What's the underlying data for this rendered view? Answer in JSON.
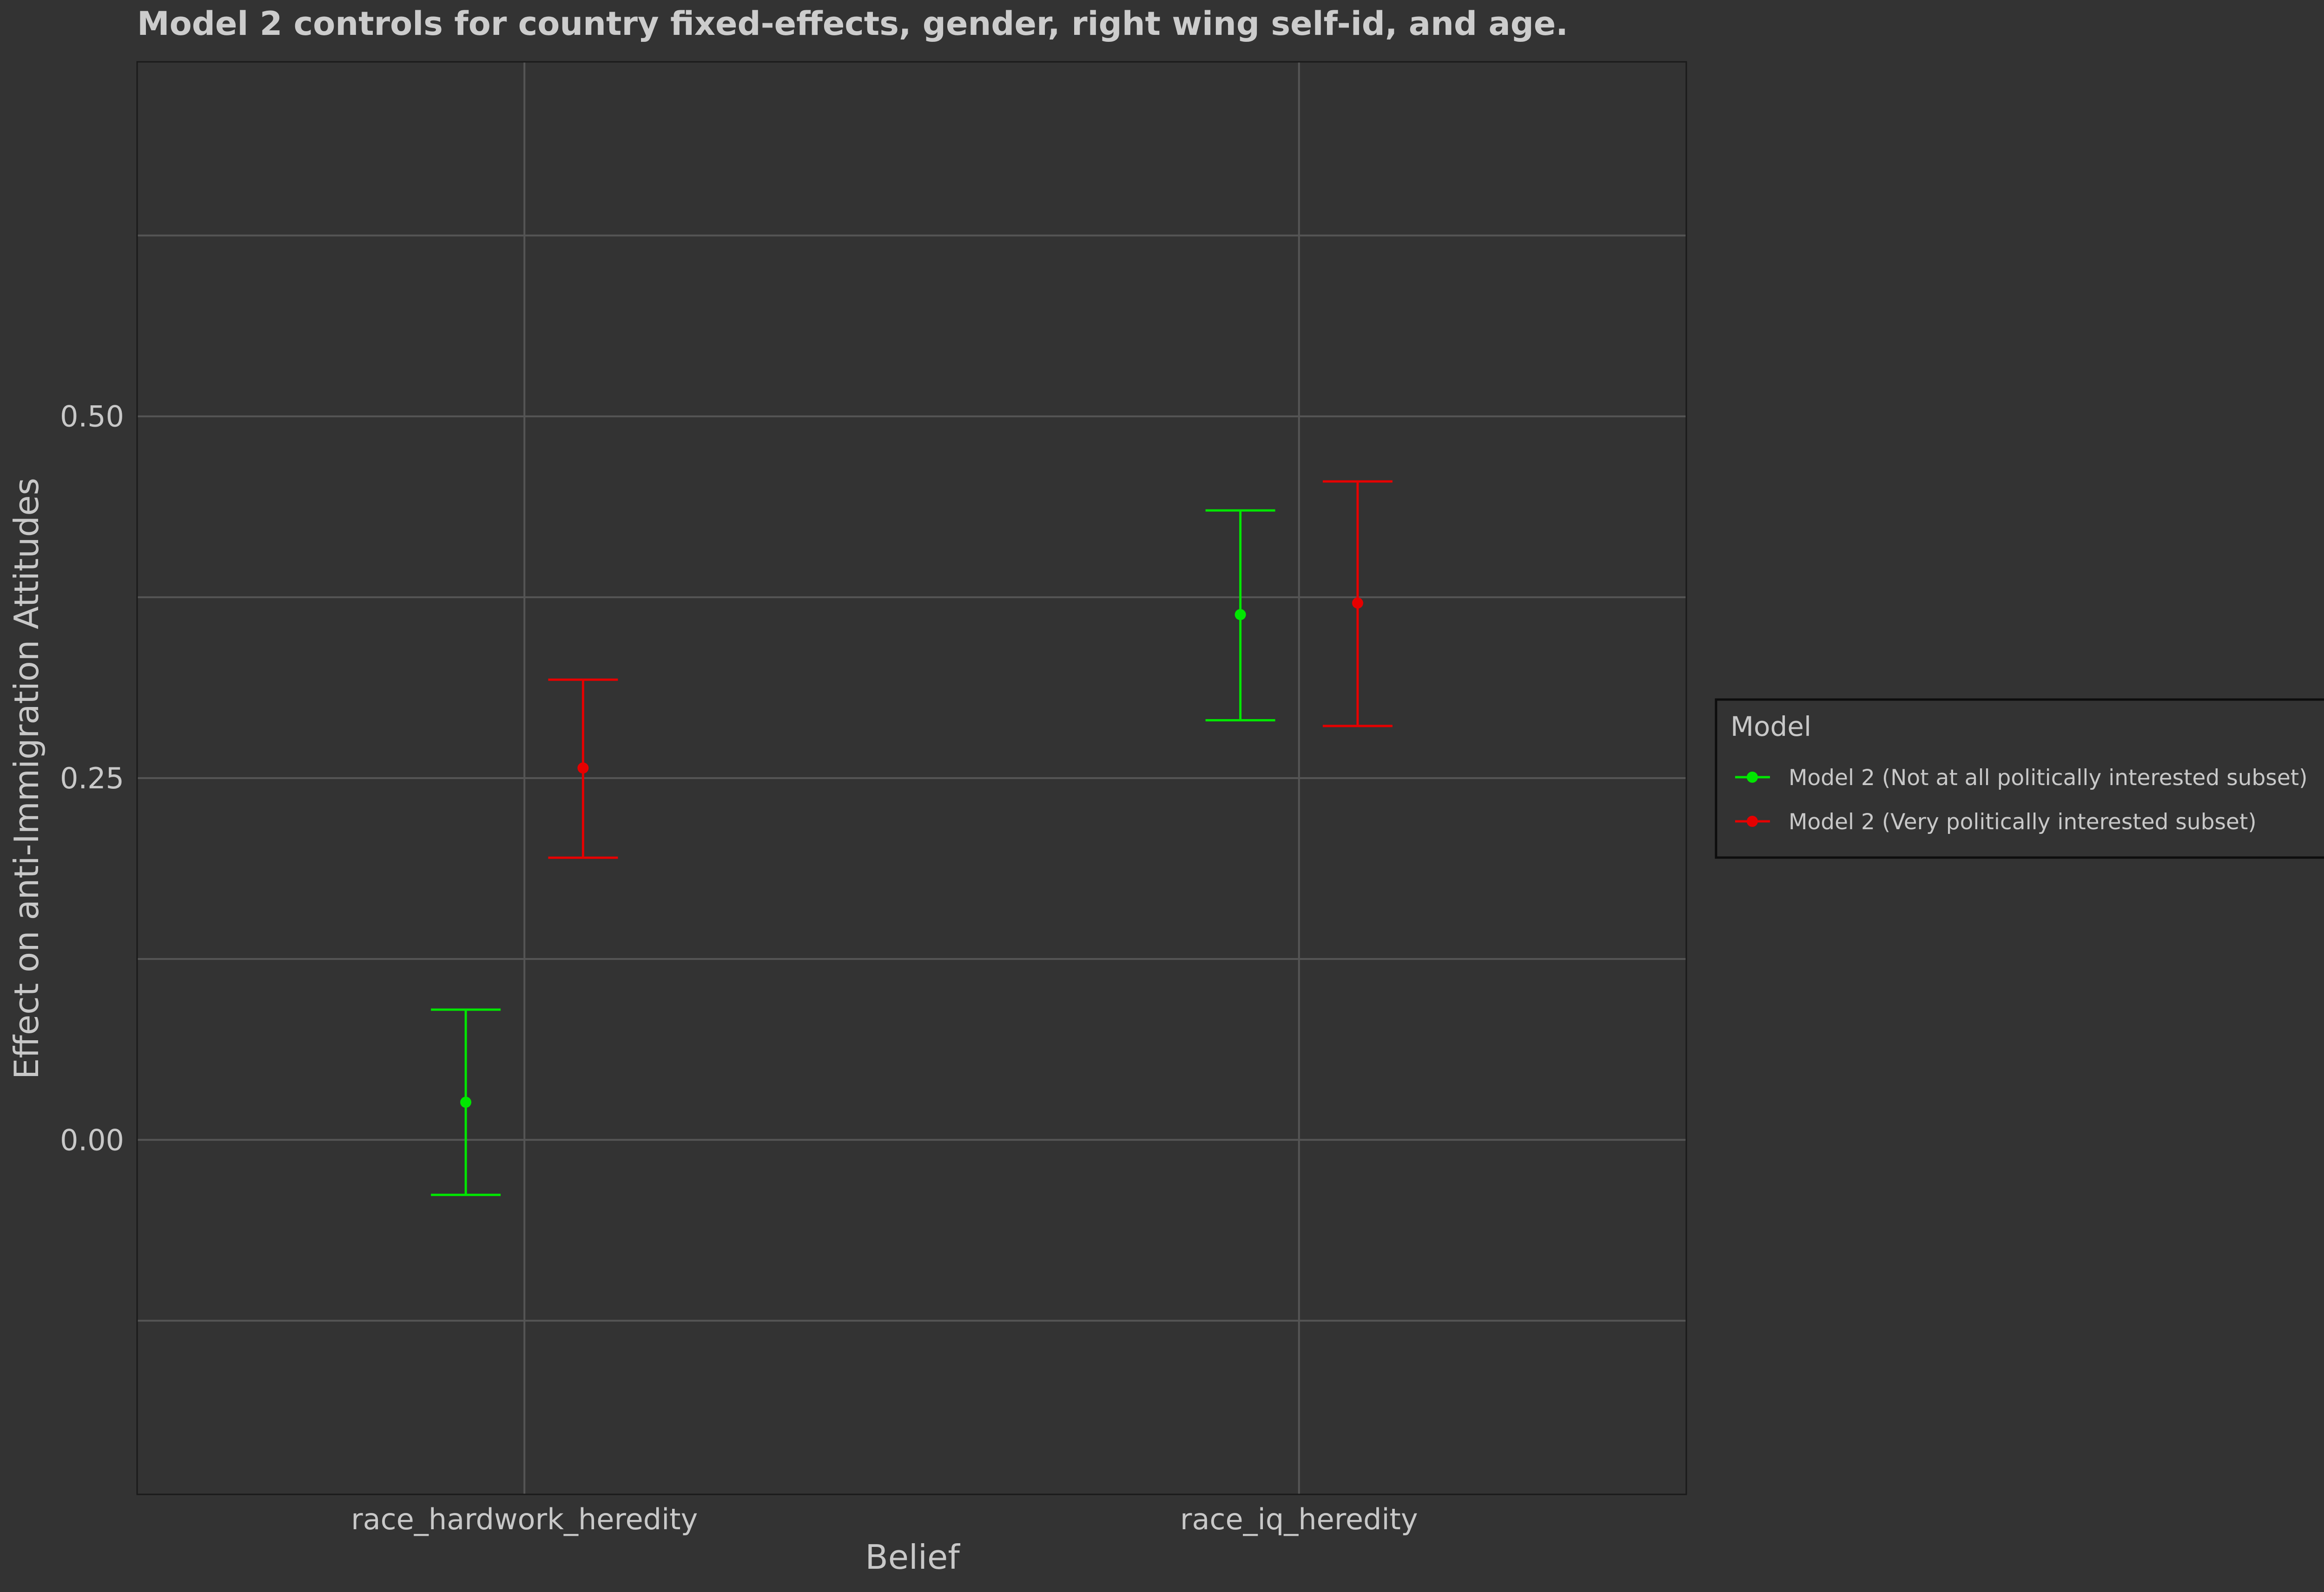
{
  "colors": {
    "background": "#333333",
    "panel_border": "#1a1a1a",
    "grid": "#555555",
    "text": "#c8c8c8",
    "series_not_interested": "#00e600",
    "series_very_interested": "#e60000"
  },
  "chart_data": {
    "type": "scatter",
    "subtype": "point-with-error-bars",
    "title": "Model 2 controls for country fixed-effects, gender, right wing self-id, and age.",
    "xlabel": "Belief",
    "ylabel": "Effect on anti-Immigration Attitudes",
    "categories": [
      "race_hardwork_heredity",
      "race_iq_heredity"
    ],
    "ylim": [
      -0.245,
      0.745
    ],
    "yticks": [
      0.0,
      0.25,
      0.5
    ],
    "ytick_labels": [
      "0.00",
      "0.25",
      "0.50"
    ],
    "grid": true,
    "legend": {
      "title": "Model",
      "placement": "right"
    },
    "series": [
      {
        "name": "Model 2 (Not at all politically interested subset)",
        "color": "#00e600",
        "points": [
          {
            "category": "race_hardwork_heredity",
            "estimate": 0.026,
            "lower": -0.038,
            "upper": 0.09
          },
          {
            "category": "race_iq_heredity",
            "estimate": 0.363,
            "lower": 0.29,
            "upper": 0.435
          }
        ]
      },
      {
        "name": "Model 2 (Very politically interested subset)",
        "color": "#e60000",
        "points": [
          {
            "category": "race_hardwork_heredity",
            "estimate": 0.257,
            "lower": 0.195,
            "upper": 0.318
          },
          {
            "category": "race_iq_heredity",
            "estimate": 0.371,
            "lower": 0.286,
            "upper": 0.455
          }
        ]
      }
    ]
  }
}
